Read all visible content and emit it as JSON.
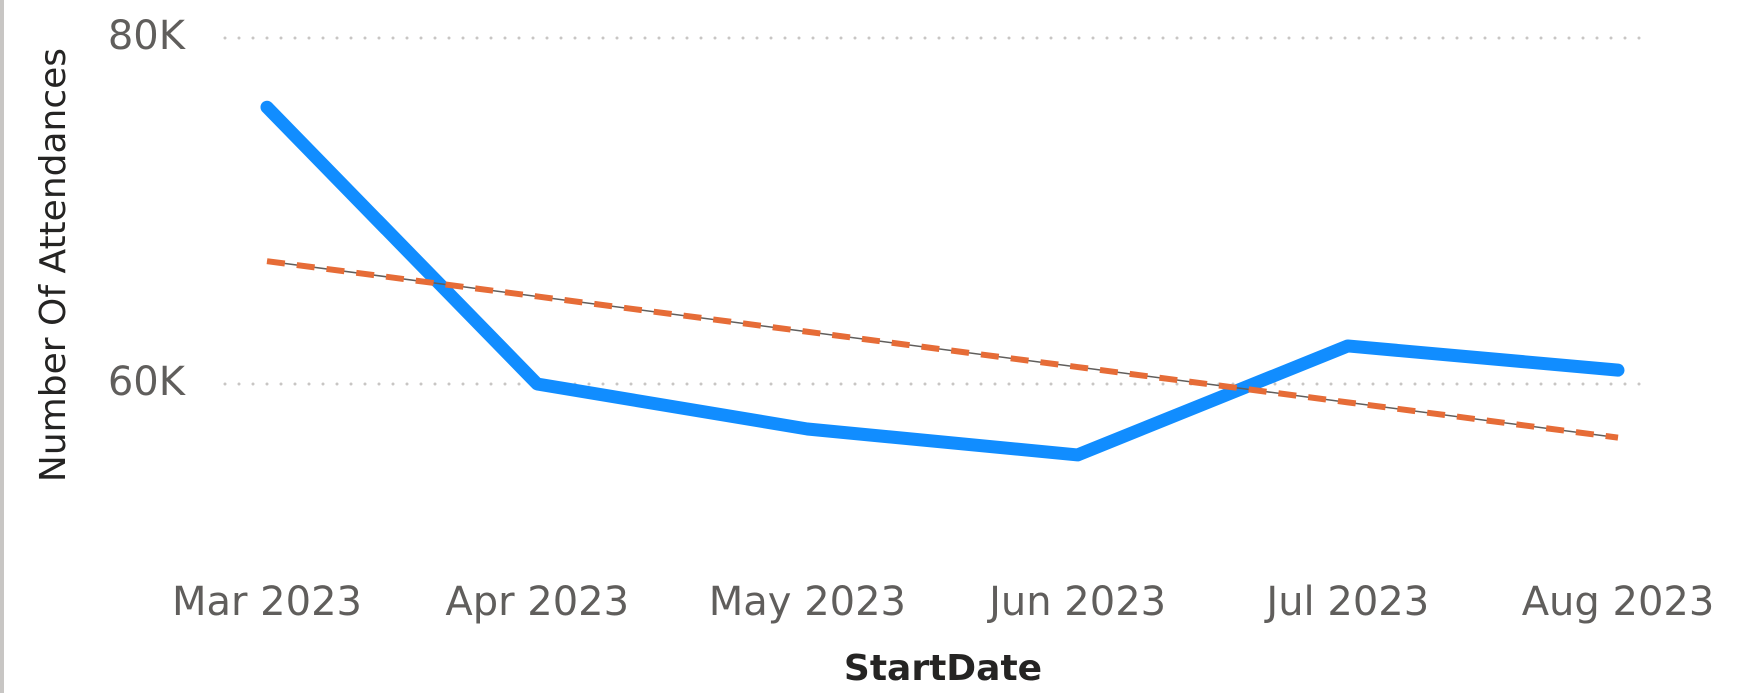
{
  "chart_data": {
    "type": "line",
    "x_label": "StartDate",
    "y_label": "Number Of Attendances",
    "categories": [
      "Mar 2023",
      "Apr 2023",
      "May 2023",
      "Jun 2023",
      "Jul 2023",
      "Aug 2023"
    ],
    "series": [
      {
        "name": "Number Of Attendances",
        "color": "#118dff",
        "values": [
          76000,
          60000,
          57400,
          55900,
          62200,
          60800
        ]
      },
      {
        "name": "Trend line",
        "color": "#e66c37",
        "dashed": true,
        "values": [
          67100,
          65060,
          63020,
          60980,
          58940,
          56900
        ]
      }
    ],
    "ylim": [
      50000,
      80000
    ],
    "yticks": [
      {
        "value": 60000,
        "label": "60K"
      },
      {
        "value": 80000,
        "label": "80K"
      }
    ],
    "grid": true
  }
}
